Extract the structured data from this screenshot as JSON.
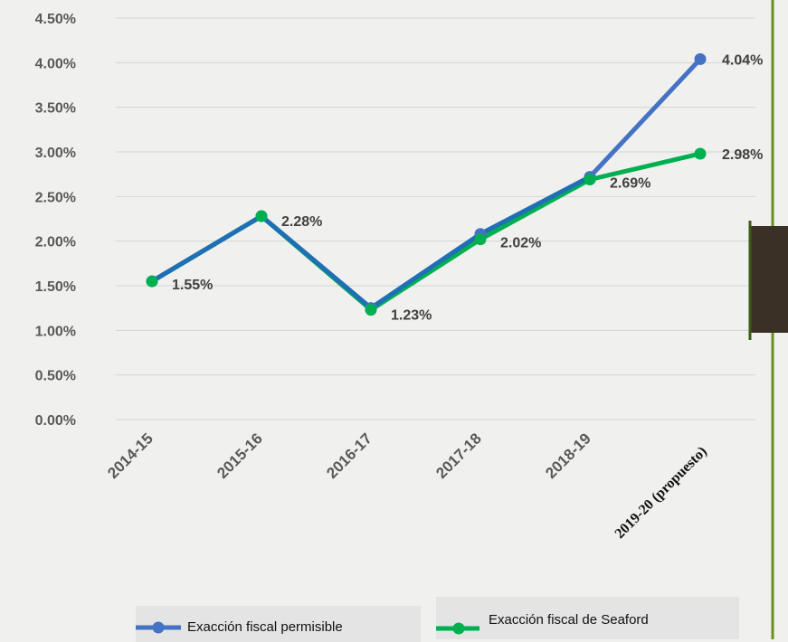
{
  "chart_data": {
    "type": "line",
    "categories": [
      "2014-15",
      "2015-16",
      "2016-17",
      "2017-18",
      "2018-19",
      "2019-20 (propuesto)"
    ],
    "series": [
      {
        "name": "Exacción fiscal permisible",
        "values": [
          1.55,
          2.28,
          1.25,
          2.08,
          2.72,
          4.04
        ],
        "color": "#4472c4"
      },
      {
        "name": "Exacción fiscal de Seaford",
        "values": [
          1.55,
          2.28,
          1.23,
          2.02,
          2.69,
          2.98
        ],
        "color": "#00b050"
      }
    ],
    "data_labels": [
      "1.55%",
      "2.28%",
      "1.23%",
      "2.02%",
      "2.69%",
      "2.98%"
    ],
    "permisible_last_label": "4.04%",
    "ylim": [
      0,
      4.5
    ],
    "y_ticks": [
      "0.00%",
      "0.50%",
      "1.00%",
      "1.50%",
      "2.00%",
      "2.50%",
      "3.00%",
      "3.50%",
      "4.00%",
      "4.50%"
    ],
    "grid": true,
    "legend_position": "bottom",
    "overlap_color": "#1f6fb5",
    "accent_border": "#6b8e23",
    "dark_box": "#3a3026"
  },
  "legend": {
    "permisible": "Exacción fiscal permisible",
    "seaford": "Exacción fiscal de Seaford"
  }
}
